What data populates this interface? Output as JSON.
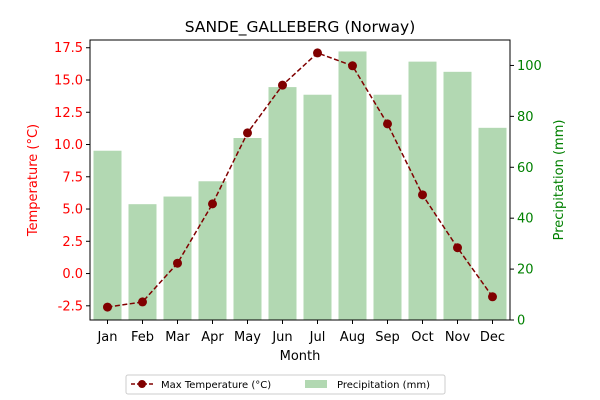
{
  "chart_data": {
    "type": "bar+line",
    "title": "SANDE_GALLEBERG (Norway)",
    "xlabel": "Month",
    "ylabel_left": "Temperature (°C)",
    "ylabel_right": "Precipitation (mm)",
    "categories": [
      "Jan",
      "Feb",
      "Mar",
      "Apr",
      "May",
      "Jun",
      "Jul",
      "Aug",
      "Sep",
      "Oct",
      "Nov",
      "Dec"
    ],
    "y_left_lim": [
      -3.6,
      18.1
    ],
    "y_left_ticks": [
      "-2.5",
      "0.0",
      "2.5",
      "5.0",
      "7.5",
      "10.0",
      "12.5",
      "15.0",
      "17.5"
    ],
    "y_right_lim": [
      0,
      110
    ],
    "y_right_ticks": [
      "0",
      "20",
      "40",
      "60",
      "80",
      "100"
    ],
    "series": [
      {
        "name": "Max Temperature (°C)",
        "type": "line",
        "axis": "left",
        "color": "#800000",
        "values": [
          -2.6,
          -2.2,
          0.8,
          5.4,
          10.9,
          14.6,
          17.1,
          16.1,
          11.6,
          6.1,
          2.0,
          -1.8
        ]
      },
      {
        "name": "Precipitation (mm)",
        "type": "bar",
        "axis": "right",
        "color": "#b2d8b2",
        "values": [
          66.5,
          45.5,
          48.5,
          54.5,
          71.5,
          91.5,
          88.5,
          105.5,
          88.5,
          101.5,
          97.5,
          75.5
        ]
      }
    ],
    "left_axis_color": "#ff0000",
    "right_axis_color": "#008000",
    "legend_position": "bottom-center"
  }
}
